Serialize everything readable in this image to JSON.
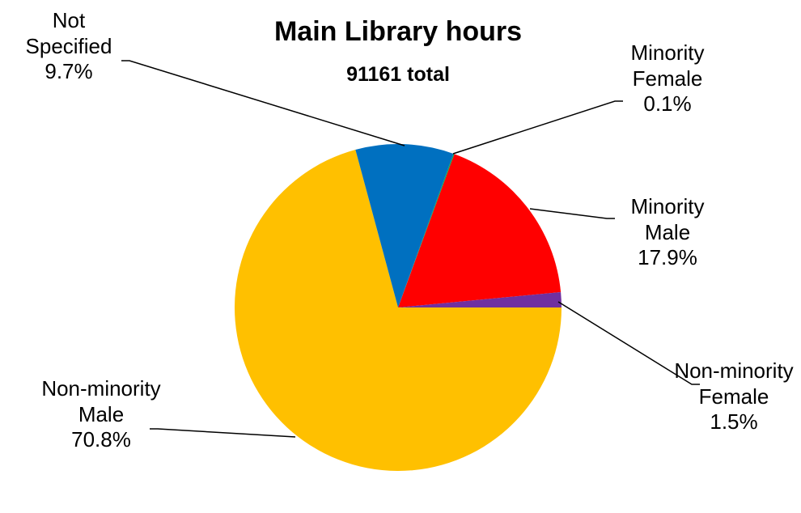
{
  "chart_data": {
    "type": "pie",
    "title": "Main Library hours",
    "subtitle": "91161 total",
    "categories": [
      "Minority Female",
      "Minority Male",
      "Non-minority Female",
      "Non-minority Male",
      "Not Specified"
    ],
    "values": [
      0.1,
      17.9,
      1.5,
      70.8,
      9.7
    ],
    "value_labels": [
      "0.1%",
      "17.9%",
      "1.5%",
      "70.8%",
      "9.7%"
    ],
    "colors": [
      "#00b050",
      "#ff0000",
      "#7030a0",
      "#ffc000",
      "#0070c0"
    ]
  }
}
